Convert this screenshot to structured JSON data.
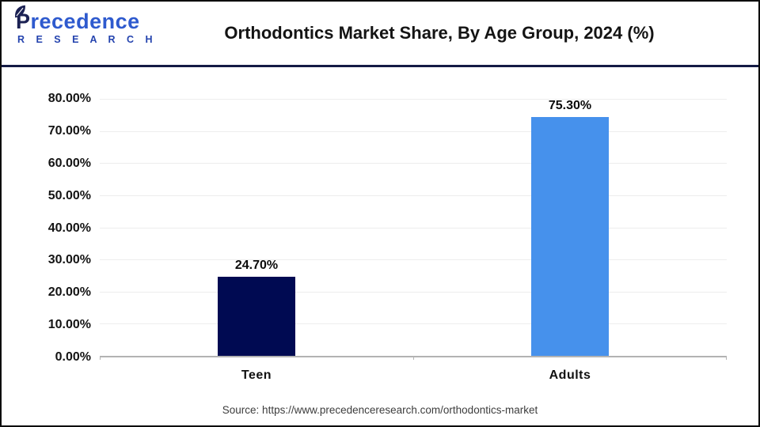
{
  "header": {
    "logo": {
      "name": "recedence",
      "initial": "P",
      "subtitle": "R E S E A R C H"
    },
    "title": "Orthodontics  Market Share, By Age Group, 2024 (%)"
  },
  "chart_data": {
    "type": "bar",
    "title": "Orthodontics  Market Share, By Age Group, 2024 (%)",
    "categories": [
      "Teen",
      "Adults"
    ],
    "values": [
      24.7,
      75.3
    ],
    "value_labels": [
      "24.70%",
      "75.30%"
    ],
    "ylim": [
      0,
      80
    ],
    "ytick_labels": [
      "80.00%",
      "70.00%",
      "60.00%",
      "50.00%",
      "40.00%",
      "30.00%",
      "20.00%",
      "10.00%",
      "0.00%"
    ],
    "grid": true,
    "legend": "none",
    "bar_colors": [
      "#000a52",
      "#4691ec"
    ]
  },
  "footer": {
    "source": "Source: https://www.precedenceresearch.com/orthodontics-market"
  },
  "colors": {
    "teen_bar": "#000a52",
    "adults_bar": "#4691ec",
    "header_divider": "#141b45",
    "axis": "#b3b3b3",
    "gridline": "#ededed",
    "logo_blue": "#2e5ace",
    "logo_navy": "#1b2153"
  }
}
